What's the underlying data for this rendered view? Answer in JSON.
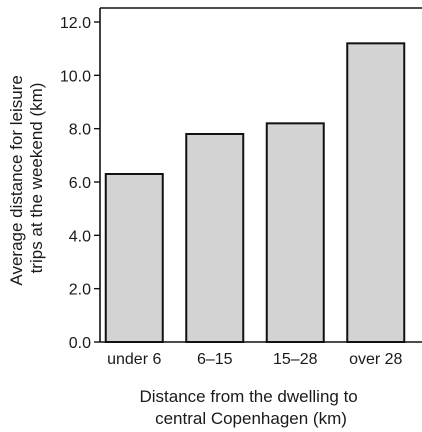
{
  "chart_data": {
    "type": "bar",
    "categories": [
      "under 6",
      "6–15",
      "15–28",
      "over 28"
    ],
    "values": [
      6.3,
      7.8,
      8.2,
      11.2
    ],
    "xlabel": [
      "Distance from the dwelling to",
      "central Copenhagen (km)"
    ],
    "ylabel": [
      "Average distance for leisure",
      "trips at the weekend (km)"
    ],
    "ylim": [
      0,
      12
    ],
    "yticks": [
      "0.0",
      "2.0",
      "4.0",
      "6.0",
      "8.0",
      "10.0",
      "12.0"
    ],
    "grid": false,
    "colors": {
      "bar_fill": "#d3d3d3",
      "bar_stroke": "#111111",
      "axis": "#111111"
    }
  }
}
